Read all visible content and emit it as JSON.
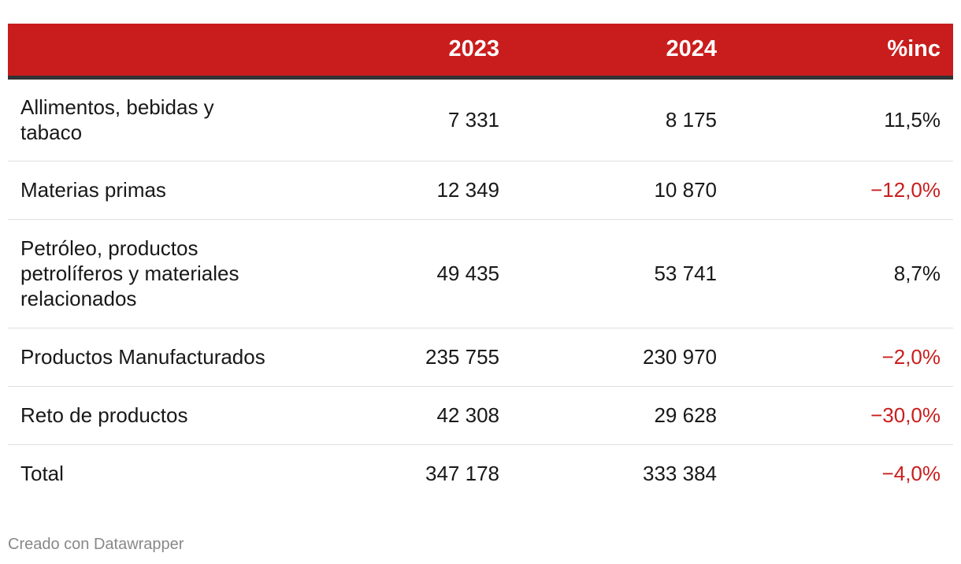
{
  "chart_data": {
    "type": "table",
    "columns": [
      "",
      "2023",
      "2024",
      "%inc"
    ],
    "rows": [
      {
        "label": "Allimentos, bebidas y tabaco",
        "v2023": "7 331",
        "v2024": "8 175",
        "pct": "11,5%",
        "pct_value": 11.5
      },
      {
        "label": "Materias primas",
        "v2023": "12 349",
        "v2024": "10 870",
        "pct": "−12,0%",
        "pct_value": -12.0
      },
      {
        "label": "Petróleo, productos petrolíferos y materiales relacionados",
        "v2023": "49 435",
        "v2024": "53 741",
        "pct": "8,7%",
        "pct_value": 8.7
      },
      {
        "label": "Productos Manufacturados",
        "v2023": "235 755",
        "v2024": "230 970",
        "pct": "−2,0%",
        "pct_value": -2.0
      },
      {
        "label": "Reto de productos",
        "v2023": "42 308",
        "v2024": "29 628",
        "pct": "−30,0%",
        "pct_value": -30.0
      },
      {
        "label": "Total",
        "v2023": "347 178",
        "v2024": "333 384",
        "pct": "−4,0%",
        "pct_value": -4.0
      }
    ]
  },
  "colors": {
    "header_bg": "#c91d1d",
    "header_text": "#ffffff",
    "negative": "#c91d1d",
    "text": "#181818",
    "rule": "#dedede",
    "header_border": "#333333",
    "footer": "#888888"
  },
  "footer": {
    "credit": "Creado con Datawrapper"
  }
}
